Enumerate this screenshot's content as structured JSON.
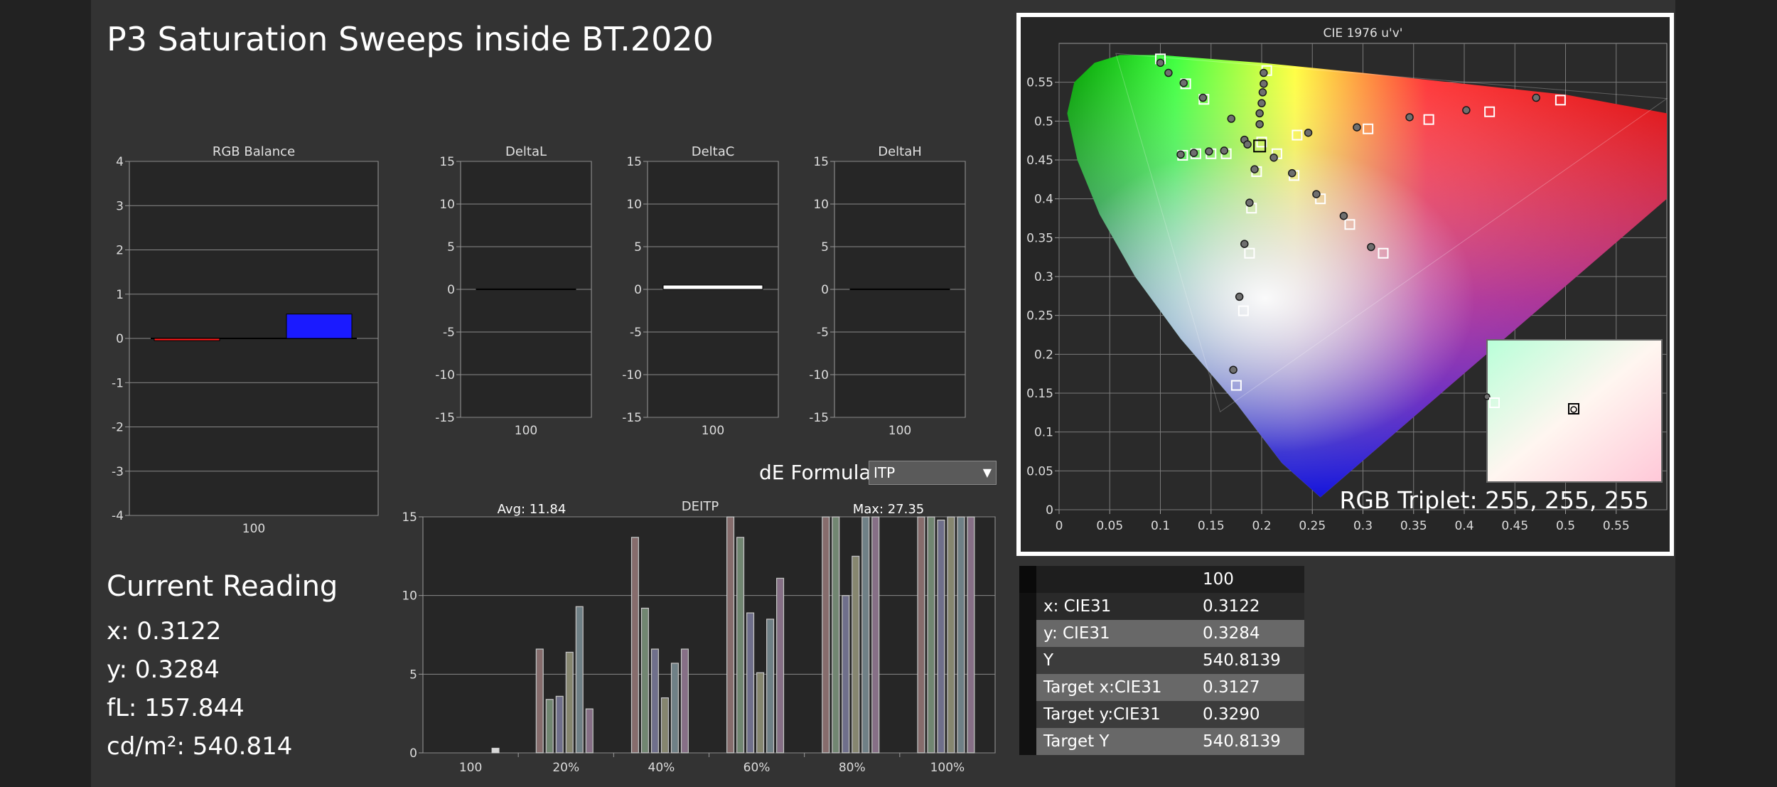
{
  "title": "P3 Saturation Sweeps inside BT.2020",
  "rgb_balance": {
    "title": "RGB Balance",
    "y_ticks": [
      "4",
      "3",
      "2",
      "1",
      "0",
      "-1",
      "-2",
      "-3",
      "-4"
    ],
    "x_label": "100",
    "bars": [
      {
        "channel": "red",
        "value": -0.05,
        "color": "#ff1a1a"
      },
      {
        "channel": "green",
        "value": 0.0,
        "color": "#1aff1a"
      },
      {
        "channel": "blue",
        "value": 0.55,
        "color": "#1a1aff"
      }
    ]
  },
  "delta_charts": [
    {
      "title": "DeltaL",
      "value": 0.05,
      "x_label": "100"
    },
    {
      "title": "DeltaC",
      "value": 0.5,
      "x_label": "100"
    },
    {
      "title": "DeltaH",
      "value": 0.05,
      "x_label": "100"
    }
  ],
  "delta_y_ticks": [
    "15",
    "10",
    "5",
    "0",
    "-5",
    "-10",
    "-15"
  ],
  "de_formula": {
    "label": "dE Formula:",
    "value": "ITP"
  },
  "deitp_chart": {
    "title": "DEITP",
    "avg": "Avg: 11.84",
    "max": "Max: 27.35",
    "y_ticks": [
      "15",
      "10",
      "5",
      "0"
    ],
    "groups": [
      "100",
      "20%",
      "40%",
      "60%",
      "80%",
      "100%"
    ],
    "values": [
      [
        0.3
      ],
      [
        6.6,
        3.4,
        3.6,
        6.4,
        9.3,
        2.8
      ],
      [
        13.7,
        9.2,
        6.6,
        3.5,
        5.7,
        6.6
      ],
      [
        16.5,
        13.7,
        8.9,
        5.1,
        8.5,
        11.1
      ],
      [
        16.5,
        16.5,
        10.0,
        12.5,
        16.5,
        16.5
      ],
      [
        16.5,
        16.5,
        14.8,
        16.5,
        16.5,
        16.5
      ]
    ],
    "colors": [
      "#c8c8c8",
      "#7a3030",
      "#3f7a3f",
      "#3a3a8a",
      "#7a7a3a",
      "#3a6a7a",
      "#7a3a7a"
    ]
  },
  "current_reading": {
    "heading": "Current Reading",
    "x": "x: 0.3122",
    "y": "y: 0.3284",
    "fL": "fL: 157.844",
    "cdm2": "cd/m²: 540.814"
  },
  "cie_chart": {
    "title": "CIE 1976 u'v'",
    "x_ticks": [
      "0",
      "0.05",
      "0.1",
      "0.15",
      "0.2",
      "0.25",
      "0.3",
      "0.35",
      "0.4",
      "0.45",
      "0.5",
      "0.55"
    ],
    "y_ticks": [
      "0",
      "0.05",
      "0.1",
      "0.15",
      "0.2",
      "0.25",
      "0.3",
      "0.35",
      "0.4",
      "0.45",
      "0.5",
      "0.55"
    ],
    "rgb_triplet": "RGB Triplet: 255, 255, 255",
    "targets": [
      [
        0.1,
        0.58
      ],
      [
        0.205,
        0.565
      ],
      [
        0.125,
        0.548
      ],
      [
        0.143,
        0.528
      ],
      [
        0.2,
        0.473
      ],
      [
        0.122,
        0.456
      ],
      [
        0.135,
        0.458
      ],
      [
        0.15,
        0.458
      ],
      [
        0.165,
        0.458
      ],
      [
        0.235,
        0.482
      ],
      [
        0.305,
        0.49
      ],
      [
        0.365,
        0.502
      ],
      [
        0.425,
        0.512
      ],
      [
        0.495,
        0.527
      ],
      [
        0.215,
        0.458
      ],
      [
        0.195,
        0.435
      ],
      [
        0.232,
        0.43
      ],
      [
        0.258,
        0.4
      ],
      [
        0.287,
        0.367
      ],
      [
        0.32,
        0.33
      ],
      [
        0.19,
        0.388
      ],
      [
        0.188,
        0.33
      ],
      [
        0.182,
        0.256
      ],
      [
        0.175,
        0.16
      ]
    ],
    "measured": [
      [
        0.1,
        0.575
      ],
      [
        0.108,
        0.562
      ],
      [
        0.123,
        0.549
      ],
      [
        0.142,
        0.53
      ],
      [
        0.202,
        0.562
      ],
      [
        0.202,
        0.548
      ],
      [
        0.201,
        0.537
      ],
      [
        0.2,
        0.523
      ],
      [
        0.198,
        0.51
      ],
      [
        0.198,
        0.496
      ],
      [
        0.17,
        0.503
      ],
      [
        0.183,
        0.476
      ],
      [
        0.12,
        0.457
      ],
      [
        0.133,
        0.459
      ],
      [
        0.148,
        0.461
      ],
      [
        0.163,
        0.462
      ],
      [
        0.186,
        0.47
      ],
      [
        0.246,
        0.485
      ],
      [
        0.294,
        0.492
      ],
      [
        0.346,
        0.505
      ],
      [
        0.402,
        0.514
      ],
      [
        0.471,
        0.53
      ],
      [
        0.212,
        0.453
      ],
      [
        0.193,
        0.438
      ],
      [
        0.23,
        0.433
      ],
      [
        0.254,
        0.406
      ],
      [
        0.281,
        0.378
      ],
      [
        0.308,
        0.338
      ],
      [
        0.188,
        0.395
      ],
      [
        0.183,
        0.342
      ],
      [
        0.178,
        0.274
      ],
      [
        0.172,
        0.18
      ]
    ]
  },
  "table": {
    "header": "100",
    "rows": [
      {
        "label": "x: CIE31",
        "value": "0.3122"
      },
      {
        "label": "y: CIE31",
        "value": "0.3284"
      },
      {
        "label": "Y",
        "value": "540.8139"
      },
      {
        "label": "Target x:CIE31",
        "value": "0.3127"
      },
      {
        "label": "Target y:CIE31",
        "value": "0.3290"
      },
      {
        "label": "Target Y",
        "value": "540.8139"
      }
    ]
  }
}
